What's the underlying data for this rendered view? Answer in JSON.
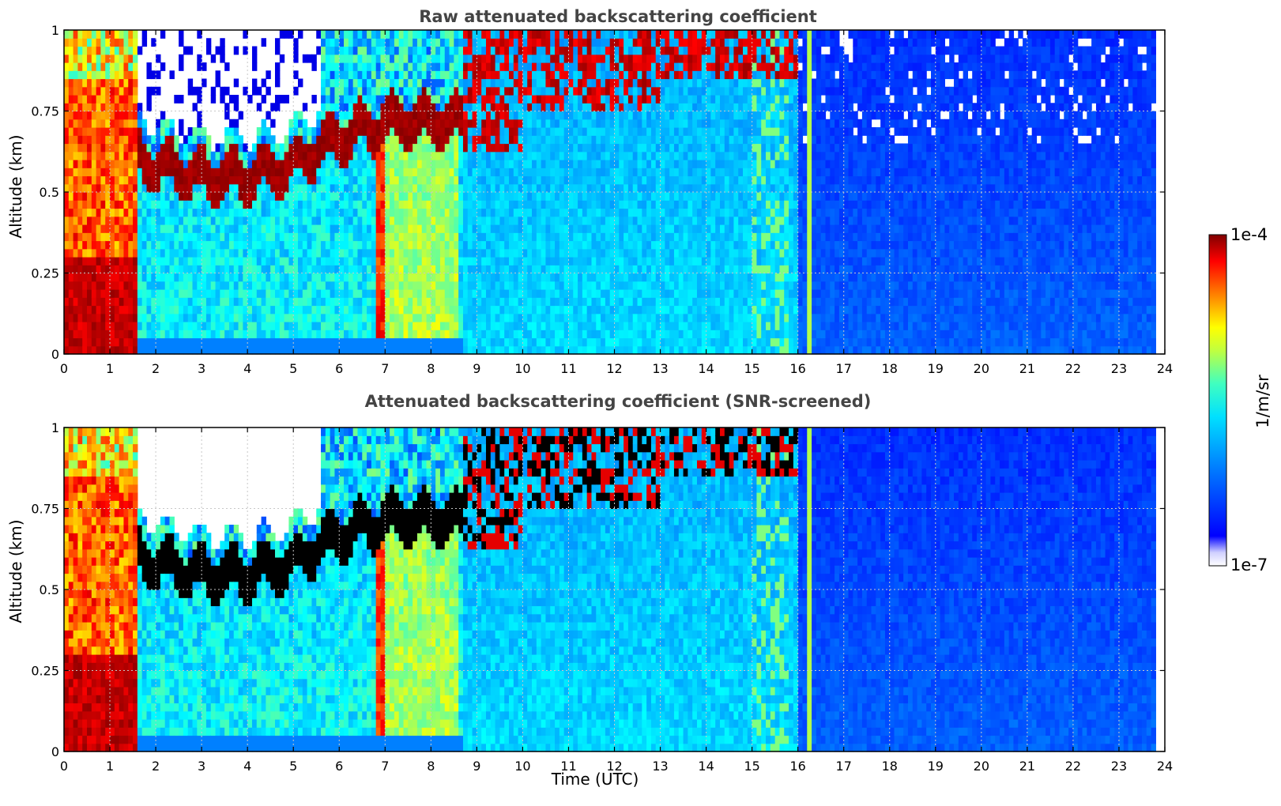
{
  "chart_data": [
    {
      "type": "heatmap",
      "title": "Raw attenuated backscattering coefficient",
      "xlabel": "",
      "ylabel": "Altitude (km)",
      "xlim": [
        0,
        24
      ],
      "ylim": [
        0,
        1
      ],
      "x_ticks": [
        "0",
        "1",
        "2",
        "3",
        "4",
        "5",
        "6",
        "7",
        "8",
        "9",
        "10",
        "11",
        "12",
        "13",
        "14",
        "15",
        "16",
        "17",
        "18",
        "19",
        "20",
        "21",
        "22",
        "23",
        "24"
      ],
      "y_ticks": [
        "0",
        "0.25",
        "0.5",
        "0.75",
        "1"
      ],
      "grid": true,
      "features": {
        "fog_layer_hours": [
          0,
          1.6
        ],
        "boundary_layer_top_km": [
          [
            1.6,
            0.6
          ],
          [
            3,
            0.55
          ],
          [
            4,
            0.55
          ],
          [
            5,
            0.58
          ],
          [
            5.7,
            0.65
          ],
          [
            7,
            0.72
          ],
          [
            8,
            0.72
          ]
        ],
        "clear_signal_above_km_hours": [
          16,
          23.8
        ],
        "data_end_hour": 23.8
      }
    },
    {
      "type": "heatmap",
      "title": "Attenuated backscattering coefficient (SNR-screened)",
      "xlabel": "Time (UTC)",
      "ylabel": "Altitude (km)",
      "xlim": [
        0,
        24
      ],
      "ylim": [
        0,
        1
      ],
      "x_ticks": [
        "0",
        "1",
        "2",
        "3",
        "4",
        "5",
        "6",
        "7",
        "8",
        "9",
        "10",
        "11",
        "12",
        "13",
        "14",
        "15",
        "16",
        "17",
        "18",
        "19",
        "20",
        "21",
        "22",
        "23",
        "24"
      ],
      "y_ticks": [
        "0",
        "0.25",
        "0.5",
        "0.75",
        "1"
      ],
      "grid": true,
      "screened_color": "#000000"
    }
  ],
  "colorbar": {
    "label": "1/m/sr",
    "max_label": "1e-4",
    "min_label": "1e-7",
    "scale": "log",
    "range": [
      1e-07,
      0.0001
    ],
    "colormap": "jet"
  }
}
